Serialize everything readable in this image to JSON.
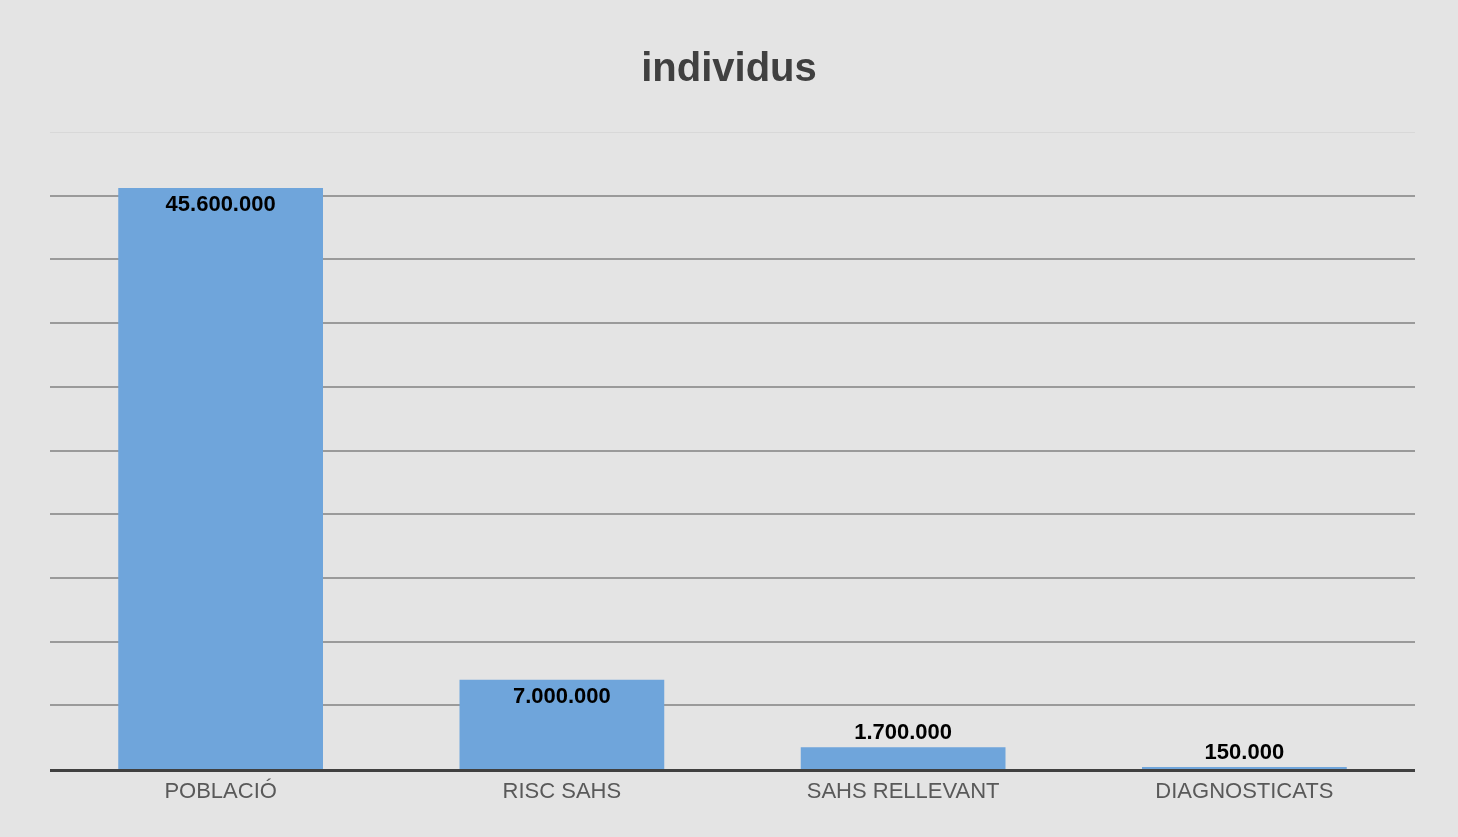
{
  "chart_data": {
    "type": "bar",
    "title": "individus",
    "categories": [
      "POBLACIÓ",
      "RISC SAHS",
      "SAHS RELLEVANT",
      "DIAGNOSTICATS"
    ],
    "values": [
      45600000,
      7000000,
      1700000,
      150000
    ],
    "value_labels": [
      "45.600.000",
      "7.000.000",
      "1.700.000",
      "150.000"
    ],
    "color": "#6fa5db",
    "ylim": [
      0,
      50000000
    ],
    "yticks": [
      {
        "value": 0,
        "label": null
      },
      {
        "value": 5000000,
        "label": null
      },
      {
        "value": 10000000,
        "label": null
      },
      {
        "value": 15000000,
        "label": null
      },
      {
        "value": 20000000,
        "label": null
      },
      {
        "value": 25000000,
        "label": null
      },
      {
        "value": 30000000,
        "label": null
      },
      {
        "value": 35000000,
        "label": null
      },
      {
        "value": 40000000,
        "label": null
      },
      {
        "value": 45000000,
        "label": null
      },
      {
        "value": 50000000,
        "label": null
      }
    ],
    "tick_labels": "x",
    "grid": "y",
    "legend": false
  }
}
